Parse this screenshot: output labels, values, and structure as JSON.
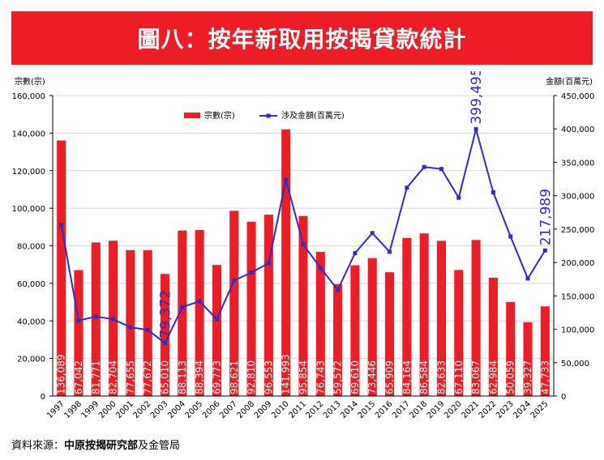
{
  "header": {
    "title": "圖八：按年新取用按揭貸款統計",
    "bg_color": "#ee1c25"
  },
  "footer": {
    "prefix": "資料來源：",
    "source_name": "中原按揭研究部",
    "suffix": "及金管局"
  },
  "chart_data": {
    "type": "bar+line",
    "categories": [
      "1997",
      "1998",
      "1999",
      "2000",
      "2001",
      "2002",
      "2003",
      "2004",
      "2005",
      "2006",
      "2007",
      "2008",
      "2009",
      "2010",
      "2011",
      "2012",
      "2013",
      "2014",
      "2015",
      "2016",
      "2017",
      "2018",
      "2019",
      "2020",
      "2021",
      "2022",
      "2023",
      "2024",
      "2025"
    ],
    "series": [
      {
        "name": "宗數(宗)",
        "type": "bar",
        "axis": "left",
        "color": "#ee1c25",
        "values": [
          136089,
          67042,
          81771,
          82704,
          77655,
          77672,
          65010,
          88113,
          88394,
          69773,
          98621,
          92810,
          96553,
          141993,
          95854,
          76743,
          59572,
          69610,
          73446,
          65909,
          84164,
          86584,
          82633,
          67110,
          83067,
          62984,
          50059,
          39327,
          47733
        ],
        "labels": [
          "136,089",
          "67,042",
          "81,771",
          "82,704",
          "77,655",
          "77,672",
          "65,010",
          "88,113",
          "88,394",
          "69,773",
          "98,621",
          "92,810",
          "96,553",
          "141,993",
          "95,854",
          "76,743",
          "59,572",
          "69,610",
          "73,446",
          "65,909",
          "84,164",
          "86,584",
          "82,633",
          "67,110",
          "83,067",
          "62,984",
          "50,059",
          "39,327",
          "47,733"
        ]
      },
      {
        "name": "涉及金額(百萬元)",
        "type": "line",
        "axis": "right",
        "color": "#2b2bd0",
        "values": [
          256000,
          113000,
          119000,
          115000,
          103000,
          99000,
          79372,
          133000,
          142000,
          115000,
          173000,
          185000,
          199000,
          324000,
          227000,
          192000,
          159000,
          214000,
          244000,
          216000,
          312000,
          343000,
          340000,
          297000,
          399495,
          305000,
          239000,
          176000,
          217989
        ],
        "annotations": [
          {
            "index": 6,
            "text": "79,372"
          },
          {
            "index": 24,
            "text": "399,495"
          },
          {
            "index": 28,
            "text": "217,989"
          }
        ]
      }
    ],
    "y_left": {
      "title": "宗數(宗)",
      "min": 0,
      "max": 160000,
      "ticks": [
        "0",
        "20,000",
        "40,000",
        "60,000",
        "80,000",
        "100,000",
        "120,000",
        "140,000",
        "160,000"
      ]
    },
    "y_right": {
      "title": "金額(百萬元)",
      "min": 0,
      "max": 450000,
      "ticks": [
        "0",
        "50,000",
        "100,000",
        "150,000",
        "200,000",
        "250,000",
        "300,000",
        "350,000",
        "400,000",
        "450,000"
      ]
    },
    "legend": [
      "宗數(宗)",
      "涉及金額(百萬元)"
    ],
    "legend_position": "top-center"
  }
}
